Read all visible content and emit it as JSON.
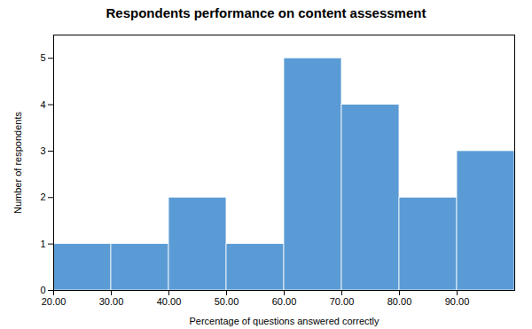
{
  "chart_data": {
    "type": "histogram",
    "title": "Respondents performance on content assessment",
    "xlabel": "Percentage of questions answered correctly",
    "ylabel": "Number of respondents",
    "bins": [
      20,
      30,
      40,
      50,
      60,
      70,
      80,
      90,
      100
    ],
    "values": [
      1,
      1,
      2,
      1,
      5,
      4,
      2,
      3
    ],
    "color": "#5B9BD5",
    "xlim": [
      20,
      100
    ],
    "xticks": [
      {
        "value": 20,
        "label": "20.00"
      },
      {
        "value": 30,
        "label": "30.00"
      },
      {
        "value": 40,
        "label": "40.00"
      },
      {
        "value": 50,
        "label": "50.00"
      },
      {
        "value": 60,
        "label": "60.00"
      },
      {
        "value": 70,
        "label": "70.00"
      },
      {
        "value": 80,
        "label": "80.00"
      },
      {
        "value": 90,
        "label": "90.00"
      }
    ],
    "ylim": [
      0,
      5.5
    ],
    "yticks": [
      0,
      1,
      2,
      3,
      4,
      5
    ],
    "grid": false
  }
}
